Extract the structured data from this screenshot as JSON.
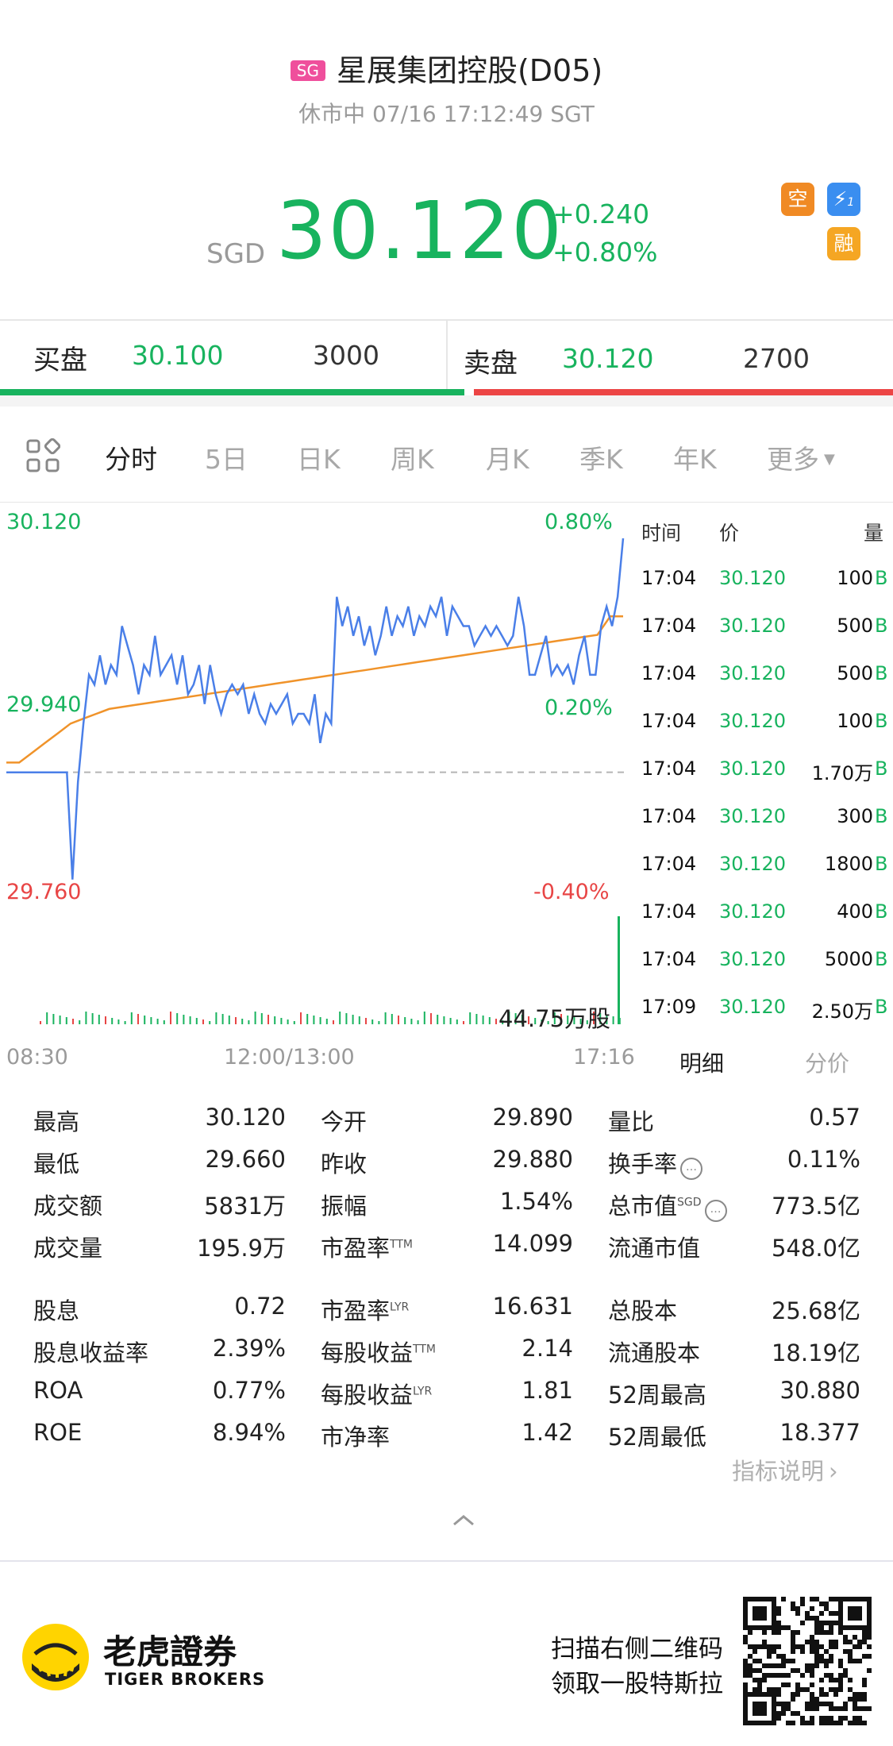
{
  "header": {
    "market_badge": "SG",
    "title": "星展集团控股(D05)",
    "status": "休市中 07/16 17:12:49 SGT",
    "currency": "SGD",
    "price": "30.120",
    "change": "+0.240",
    "change_pct": "+0.80%",
    "badges": [
      {
        "icon": "short-sell-icon",
        "text": "空",
        "color": "#f08a24"
      },
      {
        "icon": "lightning-icon",
        "text": "1",
        "color": "#3a8ef0"
      },
      {
        "icon": "margin-icon",
        "text": "融",
        "color": "#f5a623"
      }
    ]
  },
  "orderbook": {
    "bid_label": "买盘",
    "bid_price": "30.100",
    "bid_size": "3000",
    "ask_label": "卖盘",
    "ask_price": "30.120",
    "ask_size": "2700",
    "bid_ratio": 0.525
  },
  "tabs": [
    "分时",
    "5日",
    "日K",
    "周K",
    "月K",
    "季K",
    "年K",
    "更多"
  ],
  "active_tab": "分时",
  "chart": {
    "y_top": "30.120",
    "y_mid": "29.940",
    "y_bot": "29.760",
    "pct_top": "0.80%",
    "pct_mid": "0.20%",
    "pct_bot": "-0.40%",
    "volume_label": "44.75万股",
    "x_start": "08:30",
    "x_mid": "12:00/13:00",
    "x_end": "17:16"
  },
  "chart_data": {
    "type": "line",
    "ylim": [
      29.76,
      30.12
    ],
    "prev_close": 29.88,
    "series": [],
    "price_line": [
      29.88,
      29.88,
      29.88,
      29.88,
      29.88,
      29.88,
      29.88,
      29.88,
      29.88,
      29.88,
      29.88,
      29.88,
      29.77,
      29.87,
      29.93,
      29.98,
      29.97,
      30.0,
      29.97,
      29.99,
      29.98,
      30.03,
      30.01,
      29.99,
      29.96,
      29.99,
      29.98,
      30.02,
      29.98,
      29.99,
      30.0,
      29.97,
      30.0,
      29.96,
      29.97,
      29.99,
      29.95,
      29.99,
      29.96,
      29.94,
      29.96,
      29.97,
      29.96,
      29.97,
      29.94,
      29.96,
      29.94,
      29.93,
      29.95,
      29.94,
      29.95,
      29.96,
      29.93,
      29.94,
      29.94,
      29.93,
      29.96,
      29.91,
      29.94,
      29.93,
      30.06,
      30.03,
      30.05,
      30.02,
      30.04,
      30.01,
      30.03,
      30.0,
      30.02,
      30.05,
      30.02,
      30.04,
      30.03,
      30.05,
      30.02,
      30.04,
      30.03,
      30.05,
      30.04,
      30.06,
      30.02,
      30.05,
      30.04,
      30.03,
      30.03,
      30.01,
      30.02,
      30.03,
      30.02,
      30.03,
      30.02,
      30.01,
      30.02,
      30.06,
      30.03,
      29.98,
      29.98,
      30.0,
      30.02,
      29.98,
      29.99,
      29.98,
      29.99,
      29.97,
      30.0,
      30.02,
      29.98,
      29.98,
      30.03,
      30.05,
      30.03,
      30.06,
      30.12
    ],
    "avg_line": [
      29.89,
      29.9,
      29.91,
      29.92,
      29.93,
      29.935,
      29.94,
      29.945,
      29.947,
      29.949,
      29.951,
      29.953,
      29.955,
      29.957,
      29.959,
      29.961,
      29.963,
      29.965,
      29.967,
      29.969,
      29.971,
      29.973,
      29.975,
      29.977,
      29.979,
      29.981,
      29.983,
      29.985,
      29.987,
      29.989,
      29.991,
      29.993,
      29.995,
      29.997,
      29.999,
      30.001,
      30.003,
      30.005,
      30.007,
      30.009,
      30.011,
      30.013,
      30.015,
      30.017,
      30.019,
      30.021,
      30.04,
      30.04
    ],
    "xlabel": "",
    "ylabel": ""
  },
  "trades": {
    "headers": {
      "time": "时间",
      "price": "价",
      "volume": "量"
    },
    "rows": [
      {
        "time": "17:04",
        "price": "30.120",
        "vol": "100",
        "side": "B"
      },
      {
        "time": "17:04",
        "price": "30.120",
        "vol": "500",
        "side": "B"
      },
      {
        "time": "17:04",
        "price": "30.120",
        "vol": "500",
        "side": "B"
      },
      {
        "time": "17:04",
        "price": "30.120",
        "vol": "100",
        "side": "B"
      },
      {
        "time": "17:04",
        "price": "30.120",
        "vol": "1.70万",
        "side": "B"
      },
      {
        "time": "17:04",
        "price": "30.120",
        "vol": "300",
        "side": "B"
      },
      {
        "time": "17:04",
        "price": "30.120",
        "vol": "1800",
        "side": "B"
      },
      {
        "time": "17:04",
        "price": "30.120",
        "vol": "400",
        "side": "B"
      },
      {
        "time": "17:04",
        "price": "30.120",
        "vol": "5000",
        "side": "B"
      },
      {
        "time": "17:09",
        "price": "30.120",
        "vol": "2.50万",
        "side": "B"
      }
    ],
    "tab_detail": "明细",
    "tab_price": "分价"
  },
  "stats": {
    "col1": [
      {
        "k": "最高",
        "v": "30.120"
      },
      {
        "k": "最低",
        "v": "29.660"
      },
      {
        "k": "成交额",
        "v": "5831万"
      },
      {
        "k": "成交量",
        "v": "195.9万"
      },
      {
        "k": "股息",
        "v": "0.72"
      },
      {
        "k": "股息收益率",
        "v": "2.39%"
      },
      {
        "k": "ROA",
        "v": "0.77%"
      },
      {
        "k": "ROE",
        "v": "8.94%"
      }
    ],
    "col2": [
      {
        "k": "今开",
        "v": "29.890",
        "sup": ""
      },
      {
        "k": "昨收",
        "v": "29.880",
        "sup": ""
      },
      {
        "k": "振幅",
        "v": "1.54%",
        "sup": ""
      },
      {
        "k": "市盈率",
        "v": "14.099",
        "sup": "TTM"
      },
      {
        "k": "市盈率",
        "v": "16.631",
        "sup": "LYR"
      },
      {
        "k": "每股收益",
        "v": "2.14",
        "sup": "TTM"
      },
      {
        "k": "每股收益",
        "v": "1.81",
        "sup": "LYR"
      },
      {
        "k": "市净率",
        "v": "1.42",
        "sup": ""
      }
    ],
    "col3": [
      {
        "k": "量比",
        "v": "0.57",
        "sup": ""
      },
      {
        "k": "换手率",
        "v": "0.11%",
        "sup": ""
      },
      {
        "k": "总市值",
        "v": "773.5亿",
        "sup": "SGD"
      },
      {
        "k": "流通市值",
        "v": "548.0亿",
        "sup": ""
      },
      {
        "k": "总股本",
        "v": "25.68亿",
        "sup": ""
      },
      {
        "k": "流通股本",
        "v": "18.19亿",
        "sup": ""
      },
      {
        "k": "52周最高",
        "v": "30.880",
        "sup": ""
      },
      {
        "k": "52周最低",
        "v": "18.377",
        "sup": ""
      }
    ],
    "help_link": "指标说明"
  },
  "footer": {
    "brand_cn": "老虎證券",
    "brand_en": "TIGER BROKERS",
    "promo_line1": "扫描右侧二维码",
    "promo_line2": "领取一股特斯拉"
  }
}
